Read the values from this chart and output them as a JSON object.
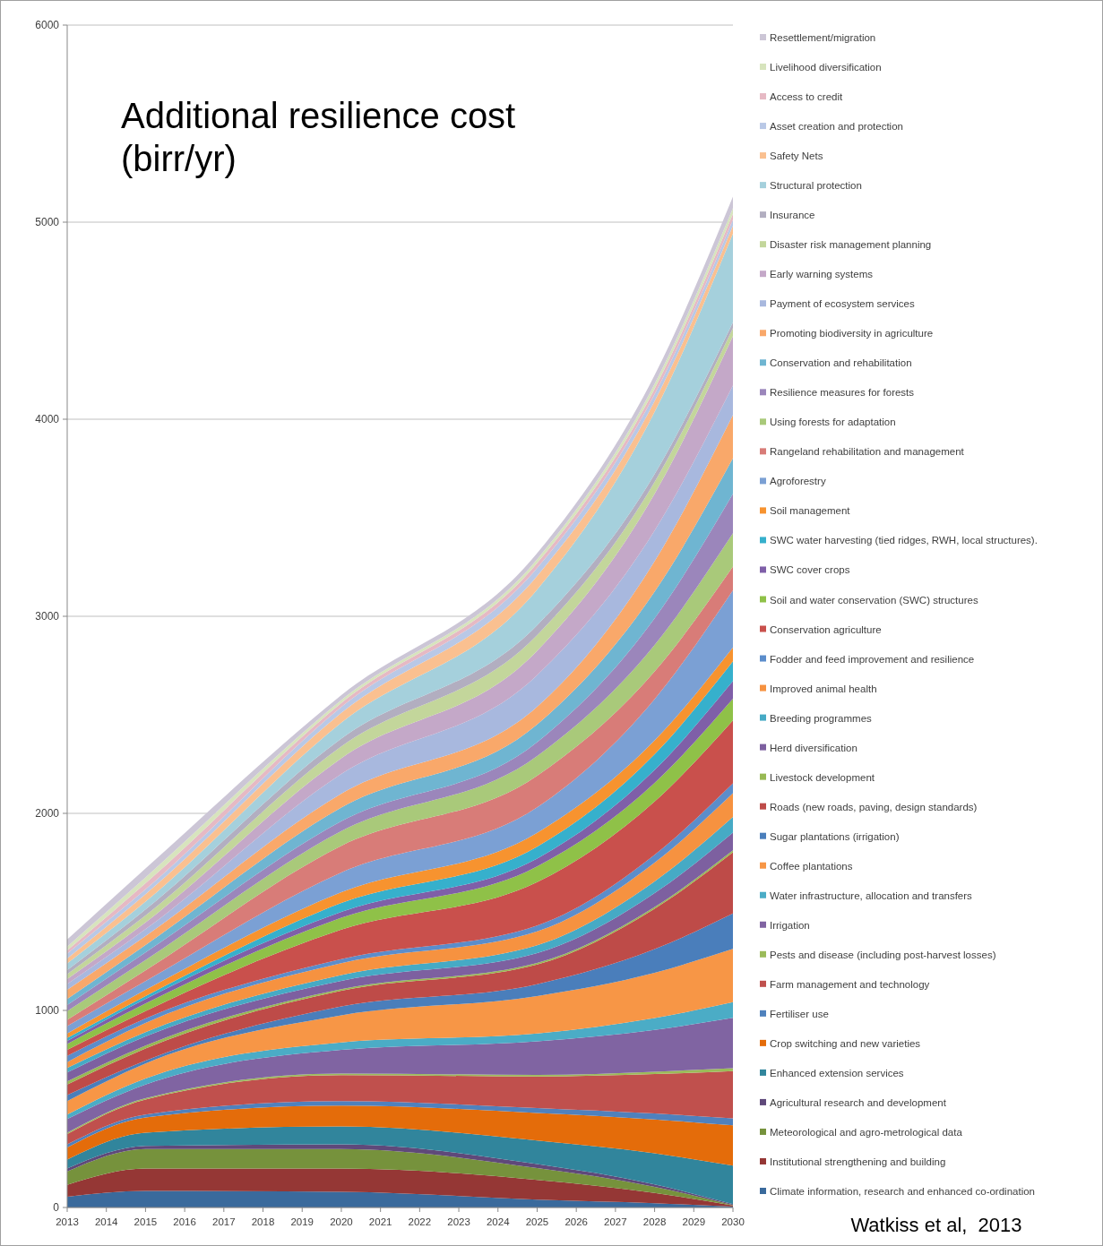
{
  "chart_data": {
    "type": "area",
    "stacked": true,
    "title": "Additional resilience cost (birr/yr)",
    "annotations": [
      "Watkiss et al,  2013"
    ],
    "x": [
      2013,
      2015,
      2020,
      2025,
      2028,
      2030
    ],
    "xlim": [
      2013,
      2030
    ],
    "xticks": [
      2013,
      2014,
      2015,
      2016,
      2017,
      2018,
      2019,
      2020,
      2021,
      2022,
      2023,
      2024,
      2025,
      2026,
      2027,
      2028,
      2029,
      2030
    ],
    "ylim": [
      0,
      6000
    ],
    "yticks": [
      0,
      1000,
      2000,
      3000,
      4000,
      5000,
      6000
    ],
    "grid": "y",
    "legend": "right",
    "series": [
      {
        "name": "Climate information, research and enhanced co-ordination",
        "color": "#3a6a9c",
        "values": [
          55,
          84,
          80,
          40,
          22,
          5
        ]
      },
      {
        "name": "Institutional strengthening and building",
        "color": "#953735",
        "values": [
          60,
          114,
          118,
          100,
          52,
          5
        ]
      },
      {
        "name": "Meteorological and agro-metrological data",
        "color": "#76923c",
        "values": [
          68,
          99,
          99,
          60,
          31,
          2
        ]
      },
      {
        "name": "Agricultural research and development",
        "color": "#5f497a",
        "values": [
          15,
          15,
          23,
          20,
          12,
          5
        ]
      },
      {
        "name": "Enhanced extension services",
        "color": "#31859c",
        "values": [
          45,
          68,
          91,
          120,
          158,
          195
        ]
      },
      {
        "name": "Crop switching and new varieties",
        "color": "#e46c0a",
        "values": [
          62,
          77,
          106,
          140,
          172,
          205
        ]
      },
      {
        "name": "Fertiliser use",
        "color": "#4f81bd",
        "values": [
          15,
          15,
          23,
          25,
          30,
          35
        ]
      },
      {
        "name": "Farm management and technology",
        "color": "#c0504d",
        "values": [
          53,
          76,
          132,
          160,
          200,
          240
        ]
      },
      {
        "name": "Pests and disease (including post-harvest losses)",
        "color": "#9bbb59",
        "values": [
          7,
          7,
          8,
          8,
          12,
          15
        ]
      },
      {
        "name": "Irrigation",
        "color": "#8064a2",
        "values": [
          69,
          69,
          120,
          170,
          212,
          255
        ]
      },
      {
        "name": "Water infrastructure, allocation and transfers",
        "color": "#4bacc6",
        "values": [
          23,
          31,
          38,
          40,
          60,
          80
        ]
      },
      {
        "name": "Coffee plantations",
        "color": "#f79646",
        "values": [
          68,
          76,
          137,
          190,
          230,
          270
        ]
      },
      {
        "name": "Sugar plantations (irrigation)",
        "color": "#4a7ebb",
        "values": [
          31,
          15,
          45,
          60,
          120,
          180
        ]
      },
      {
        "name": "Roads (new roads, paving, design standards)",
        "color": "#be4b48",
        "values": [
          53,
          61,
          80,
          100,
          205,
          310
        ]
      },
      {
        "name": "Livestock development",
        "color": "#98b954",
        "values": [
          16,
          15,
          8,
          8,
          9,
          10
        ]
      },
      {
        "name": "Herd diversification",
        "color": "#7d60a0",
        "values": [
          45,
          46,
          42,
          50,
          70,
          90
        ]
      },
      {
        "name": "Breeding programmes",
        "color": "#46aac5",
        "values": [
          23,
          22,
          30,
          40,
          60,
          80
        ]
      },
      {
        "name": "Improved animal health",
        "color": "#f69240",
        "values": [
          30,
          46,
          60,
          70,
          95,
          120
        ]
      },
      {
        "name": "Fodder and feed improvement and resilience",
        "color": "#5b8dcb",
        "values": [
          31,
          23,
          20,
          30,
          40,
          50
        ]
      },
      {
        "name": "Conservation agriculture",
        "color": "#c9504c",
        "values": [
          31,
          38,
          150,
          220,
          270,
          320
        ]
      },
      {
        "name": "Soil and water conservation (SWC) structures",
        "color": "#8fc148",
        "values": [
          30,
          38,
          60,
          80,
          95,
          110
        ]
      },
      {
        "name": "SWC cover crops",
        "color": "#7f5fa8",
        "values": [
          15,
          23,
          30,
          40,
          65,
          90
        ]
      },
      {
        "name": "SWC water harvesting (tied ridges, RWH, local structures).",
        "color": "#36b0cc",
        "values": [
          15,
          15,
          45,
          60,
          80,
          100
        ]
      },
      {
        "name": "Soil management",
        "color": "#f7932f",
        "values": [
          23,
          31,
          55,
          70,
          70,
          70
        ]
      },
      {
        "name": "Agroforestry",
        "color": "#7ba0d4",
        "values": [
          38,
          45,
          100,
          130,
          210,
          290
        ]
      },
      {
        "name": "Rangeland rehabilitation and management",
        "color": "#d87c78",
        "values": [
          31,
          54,
          135,
          160,
          140,
          120
        ]
      },
      {
        "name": "Using forests for adaptation",
        "color": "#a9c97a",
        "values": [
          45,
          53,
          75,
          100,
          135,
          170
        ]
      },
      {
        "name": "Resilience measures for forests",
        "color": "#9b86bb",
        "values": [
          30,
          38,
          50,
          70,
          135,
          200
        ]
      },
      {
        "name": "Conservation and rehabilitation",
        "color": "#6fb5d1",
        "values": [
          31,
          38,
          70,
          90,
          135,
          180
        ]
      },
      {
        "name": "Promoting biodiversity in agriculture",
        "color": "#f9a86a",
        "values": [
          46,
          45,
          70,
          90,
          155,
          220
        ]
      },
      {
        "name": "Payment of ecosystem services",
        "color": "#a8b8de",
        "values": [
          30,
          35,
          100,
          160,
          155,
          150
        ]
      },
      {
        "name": "Early warning systems",
        "color": "#c4a8c8",
        "values": [
          25,
          35,
          80,
          124,
          187,
          250
        ]
      },
      {
        "name": "Disaster risk management planning",
        "color": "#c3d69b",
        "values": [
          25,
          35,
          60,
          80,
          60,
          40
        ]
      },
      {
        "name": "Insurance",
        "color": "#b2aec0",
        "values": [
          20,
          30,
          40,
          50,
          40,
          30
        ]
      },
      {
        "name": "Structural protection",
        "color": "#a5d0dc",
        "values": [
          35,
          40,
          80,
          180,
          315,
          450
        ]
      },
      {
        "name": "Safety Nets",
        "color": "#fac090",
        "values": [
          25,
          38,
          50,
          70,
          55,
          40
        ]
      },
      {
        "name": "Asset creation and protection",
        "color": "#b9c8e6",
        "values": [
          25,
          25,
          30,
          40,
          35,
          30
        ]
      },
      {
        "name": "Access to credit",
        "color": "#e6b9c4",
        "values": [
          15,
          30,
          20,
          25,
          28,
          30
        ]
      },
      {
        "name": "Livelihood diversification",
        "color": "#d7e4bd",
        "values": [
          20,
          30,
          15,
          20,
          25,
          30
        ]
      },
      {
        "name": "Resettlement/migration",
        "color": "#ccc6d6",
        "values": [
          36,
          45,
          25,
          30,
          44,
          58
        ]
      }
    ]
  }
}
